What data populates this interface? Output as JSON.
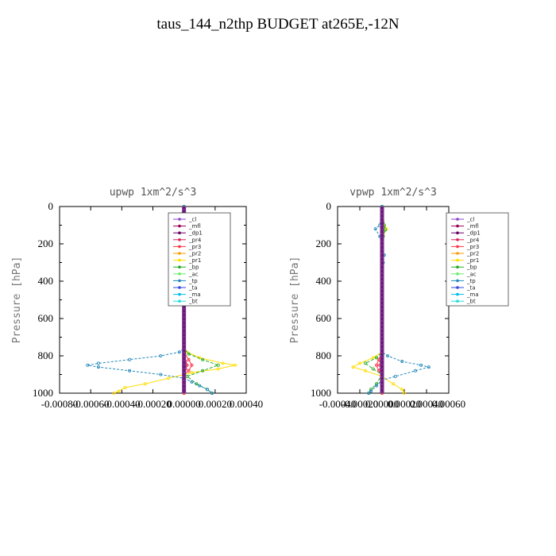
{
  "title": "taus_144_n2thp  BUDGET at265E,-12N",
  "chart_data": [
    {
      "type": "line",
      "title": "upwp   1xm^2/s^3",
      "ylabel": "Pressure  [hPa]",
      "xlim": [
        -0.0008,
        0.0004
      ],
      "ylim": [
        1000,
        0
      ],
      "x_ticks": [
        "-0.00080",
        "-0.00060",
        "-0.00040",
        "-0.00020",
        "0.00000",
        "0.00020",
        "0.00040"
      ],
      "x_tick_values": [
        -0.0008,
        -0.0006,
        -0.0004,
        -0.0002,
        0.0,
        0.0002,
        0.0004
      ],
      "y_ticks": [
        "0",
        "200",
        "400",
        "600",
        "800",
        "1000"
      ],
      "y_tick_values": [
        0,
        200,
        400,
        600,
        800,
        1000
      ],
      "legend_position": "top-right",
      "series": [
        {
          "name": "_cl",
          "color": "#8844cc",
          "marker": "o",
          "points": [
            [
              0.0,
              0
            ],
            [
              0.0,
              1000
            ]
          ]
        },
        {
          "name": "_mfl",
          "color": "#990055",
          "marker": "s",
          "points": [
            [
              0.0,
              0
            ],
            [
              0.0,
              1000
            ]
          ]
        },
        {
          "name": "_dp1",
          "color": "#660066",
          "marker": "o",
          "points": [
            [
              0.0,
              0
            ],
            [
              0.0,
              1000
            ]
          ]
        },
        {
          "name": "_pr4",
          "color": "#dd2255",
          "marker": "o",
          "points": [
            [
              0.0,
              0
            ],
            [
              0.0,
              800
            ],
            [
              1e-05,
              830
            ],
            [
              2e-05,
              850
            ],
            [
              1e-05,
              870
            ],
            [
              0.0,
              890
            ],
            [
              0.0,
              1000
            ]
          ]
        },
        {
          "name": "_pr3",
          "color": "#ff3344",
          "marker": "t",
          "points": [
            [
              0.0,
              0
            ],
            [
              0.0,
              780
            ],
            [
              3e-05,
              820
            ],
            [
              5e-05,
              850
            ],
            [
              3e-05,
              880
            ],
            [
              0.0,
              900
            ],
            [
              0.0,
              1000
            ]
          ]
        },
        {
          "name": "_pr2",
          "color": "#ff9900",
          "marker": "t",
          "points": [
            [
              0.0,
              0
            ],
            [
              0.0,
              1000
            ]
          ]
        },
        {
          "name": "_pr1",
          "color": "#ffdd00",
          "marker": "o",
          "points": [
            [
              0.0,
              0
            ],
            [
              -3e-05,
              100
            ],
            [
              -6e-05,
              120
            ],
            [
              -2e-05,
              150
            ],
            [
              0.0,
              200
            ],
            [
              0.0,
              760
            ],
            [
              2e-05,
              780
            ],
            [
              0.0001,
              810
            ],
            [
              0.00025,
              840
            ],
            [
              0.00033,
              850
            ],
            [
              0.00022,
              870
            ],
            [
              5e-05,
              890
            ],
            [
              -0.0001,
              920
            ],
            [
              -0.00025,
              950
            ],
            [
              -0.00038,
              970
            ],
            [
              -0.00042,
              990
            ],
            [
              -0.00045,
              1000
            ]
          ]
        },
        {
          "name": "_bp",
          "color": "#22aa22",
          "marker": "x",
          "points": [
            [
              0.0,
              0
            ],
            [
              -4e-05,
              100
            ],
            [
              -5e-05,
              125
            ],
            [
              -1e-05,
              160
            ],
            [
              0.0,
              200
            ],
            [
              0.0,
              760
            ],
            [
              3e-05,
              790
            ],
            [
              0.00012,
              820
            ],
            [
              0.00022,
              850
            ],
            [
              0.00012,
              880
            ],
            [
              2e-05,
              910
            ],
            [
              8e-05,
              950
            ],
            [
              0.00015,
              980
            ],
            [
              0.00018,
              1000
            ]
          ]
        },
        {
          "name": "_ac",
          "color": "#66ee66",
          "marker": "o",
          "points": [
            [
              0.0,
              0
            ],
            [
              0.0,
              1000
            ]
          ]
        },
        {
          "name": "_tp",
          "color": "#2288bb",
          "marker": "x",
          "points": [
            [
              0.0,
              0
            ],
            [
              2e-05,
              100
            ],
            [
              4e-05,
              120
            ],
            [
              0.0,
              160
            ],
            [
              -1e-05,
              210
            ],
            [
              0.0,
              260
            ],
            [
              0.0,
              760
            ],
            [
              -3e-05,
              780
            ],
            [
              -0.00015,
              800
            ],
            [
              -0.00035,
              820
            ],
            [
              -0.00055,
              840
            ],
            [
              -0.00062,
              850
            ],
            [
              -0.00055,
              860
            ],
            [
              -0.00035,
              880
            ],
            [
              -0.00015,
              900
            ],
            [
              0.0,
              920
            ],
            [
              5e-05,
              940
            ],
            [
              0.0001,
              960
            ],
            [
              0.00015,
              980
            ],
            [
              0.00018,
              1000
            ]
          ]
        },
        {
          "name": "_ta",
          "color": "#3344dd",
          "marker": "o",
          "points": [
            [
              0.0,
              0
            ],
            [
              0.0,
              1000
            ]
          ]
        },
        {
          "name": "_ma",
          "color": "#00bbee",
          "marker": "-",
          "points": [
            [
              0.0,
              0
            ],
            [
              0.0,
              1000
            ]
          ]
        },
        {
          "name": "_bt",
          "color": "#22dddd",
          "marker": "o",
          "points": [
            [
              0.0,
              0
            ],
            [
              0.0,
              1000
            ]
          ]
        }
      ]
    },
    {
      "type": "line",
      "title": "vpwp   1xm^2/s^3",
      "ylabel": "Pressure  [hPa]",
      "xlim": [
        -0.0004,
        0.0006
      ],
      "ylim": [
        1000,
        0
      ],
      "x_ticks": [
        "-0.00040",
        "-0.00020",
        "0.00000",
        "0.00020",
        "0.00040",
        "0.00060"
      ],
      "x_tick_values": [
        -0.0004,
        -0.0002,
        0.0,
        0.0002,
        0.0004,
        0.0006
      ],
      "y_ticks": [
        "0",
        "200",
        "400",
        "600",
        "800",
        "1000"
      ],
      "y_tick_values": [
        0,
        200,
        400,
        600,
        800,
        1000
      ],
      "legend_position": "top-right",
      "series": [
        {
          "name": "_cl",
          "color": "#8844cc",
          "marker": "o",
          "points": [
            [
              0.0,
              0
            ],
            [
              0.0,
              1000
            ]
          ]
        },
        {
          "name": "_mfl",
          "color": "#990055",
          "marker": "s",
          "points": [
            [
              0.0,
              0
            ],
            [
              0.0,
              1000
            ]
          ]
        },
        {
          "name": "_dp1",
          "color": "#660066",
          "marker": "o",
          "points": [
            [
              0.0,
              0
            ],
            [
              0.0,
              1000
            ]
          ]
        },
        {
          "name": "_pr4",
          "color": "#dd2255",
          "marker": "o",
          "points": [
            [
              0.0,
              0
            ],
            [
              0.0,
              800
            ],
            [
              -1e-05,
              830
            ],
            [
              -2e-05,
              850
            ],
            [
              -1e-05,
              870
            ],
            [
              0.0,
              890
            ],
            [
              0.0,
              1000
            ]
          ]
        },
        {
          "name": "_pr3",
          "color": "#ff3344",
          "marker": "t",
          "points": [
            [
              0.0,
              0
            ],
            [
              0.0,
              780
            ],
            [
              -3e-05,
              820
            ],
            [
              -5e-05,
              850
            ],
            [
              -3e-05,
              880
            ],
            [
              0.0,
              900
            ],
            [
              0.0,
              1000
            ]
          ]
        },
        {
          "name": "_pr2",
          "color": "#ff9900",
          "marker": "t",
          "points": [
            [
              0.0,
              0
            ],
            [
              0.0,
              1000
            ]
          ]
        },
        {
          "name": "_pr1",
          "color": "#ffdd00",
          "marker": "o",
          "points": [
            [
              0.0,
              0
            ],
            [
              2e-05,
              100
            ],
            [
              4e-05,
              120
            ],
            [
              1e-05,
              150
            ],
            [
              0.0,
              200
            ],
            [
              0.0,
              780
            ],
            [
              -8e-05,
              810
            ],
            [
              -0.0002,
              840
            ],
            [
              -0.00026,
              860
            ],
            [
              -0.00015,
              880
            ],
            [
              0.0,
              910
            ],
            [
              0.0001,
              950
            ],
            [
              0.00018,
              980
            ],
            [
              0.0002,
              1000
            ]
          ]
        },
        {
          "name": "_bp",
          "color": "#22aa22",
          "marker": "x",
          "points": [
            [
              0.0,
              0
            ],
            [
              2e-05,
              100
            ],
            [
              3e-05,
              125
            ],
            [
              1e-05,
              160
            ],
            [
              0.0,
              200
            ],
            [
              0.0,
              780
            ],
            [
              -5e-05,
              810
            ],
            [
              -0.00015,
              840
            ],
            [
              -8e-05,
              870
            ],
            [
              0.0,
              900
            ],
            [
              -5e-05,
              950
            ],
            [
              -0.0001,
              980
            ],
            [
              -0.00012,
              1000
            ]
          ]
        },
        {
          "name": "_ac",
          "color": "#66ee66",
          "marker": "o",
          "points": [
            [
              0.0,
              0
            ],
            [
              0.0,
              1000
            ]
          ]
        },
        {
          "name": "_tp",
          "color": "#2288bb",
          "marker": "x",
          "points": [
            [
              0.0,
              0
            ],
            [
              -2e-05,
              100
            ],
            [
              -6e-05,
              120
            ],
            [
              -2e-05,
              160
            ],
            [
              0.0,
              220
            ],
            [
              2e-05,
              260
            ],
            [
              1e-05,
              300
            ],
            [
              0.0,
              780
            ],
            [
              5e-05,
              800
            ],
            [
              0.00018,
              830
            ],
            [
              0.00035,
              850
            ],
            [
              0.00042,
              860
            ],
            [
              0.0003,
              880
            ],
            [
              0.00012,
              910
            ],
            [
              0.0,
              930
            ],
            [
              -5e-05,
              960
            ],
            [
              -0.0001,
              990
            ],
            [
              -0.00012,
              1000
            ]
          ]
        },
        {
          "name": "_ta",
          "color": "#3344dd",
          "marker": "o",
          "points": [
            [
              0.0,
              0
            ],
            [
              0.0,
              1000
            ]
          ]
        },
        {
          "name": "_ma",
          "color": "#00bbee",
          "marker": "-",
          "points": [
            [
              0.0,
              0
            ],
            [
              0.0,
              1000
            ]
          ]
        },
        {
          "name": "_bt",
          "color": "#22dddd",
          "marker": "o",
          "points": [
            [
              0.0,
              0
            ],
            [
              0.0,
              1000
            ]
          ]
        }
      ]
    }
  ]
}
